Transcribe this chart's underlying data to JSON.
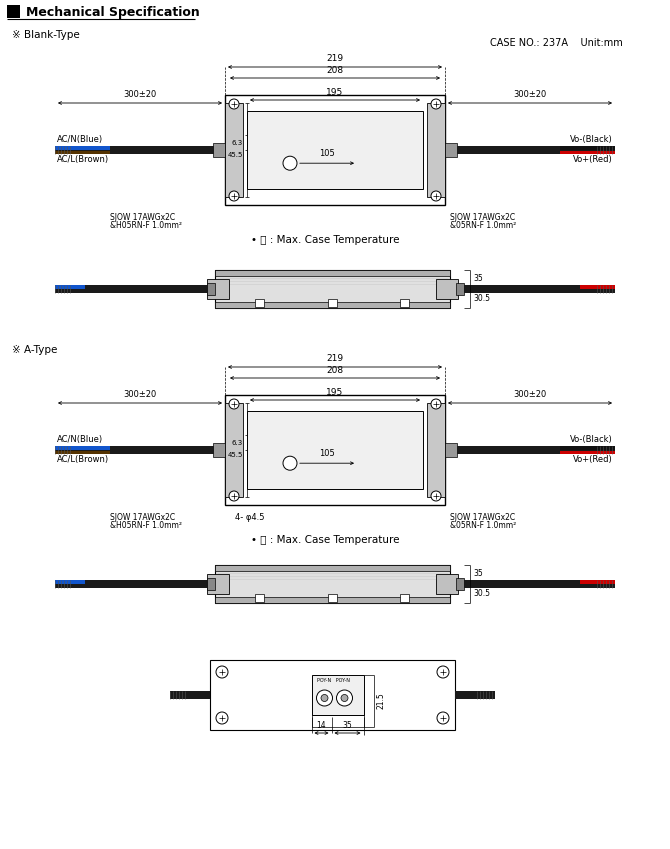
{
  "title": "Mechanical Specification",
  "bg_color": "#ffffff",
  "line_color": "#000000",
  "case_no": "CASE NO.: 237A    Unit:mm",
  "blank_type_label": "※ Blank-Type",
  "a_type_label": "※ A-Type",
  "dim_219": "219",
  "dim_208": "208",
  "dim_195": "195",
  "dim_105": "105",
  "dim_300_20": "300±20",
  "dim_63": "6.3",
  "dim_455": "45.5",
  "ac_label1": "AC/N(Blue)",
  "ac_label2": "AC/L(Brown)",
  "sjow_left": "SJOW 17AWGx2C",
  "h05rn_left": "&H05RN-F 1.0mm²",
  "sjow_right": "SJOW 17AWGx2C",
  "h05rn_right": "&05RN-F 1.0mm²",
  "vo_black": "Vo-(Black)",
  "vo_red": "Vo+(Red)",
  "tc_note": "• Ⓣ : Max. Case Temperature",
  "a_type_extra": "4- φ4.5",
  "dim_215": "21.5",
  "dim_14": "14",
  "dim_35": "35",
  "dim_35s": "35",
  "dim_305": "30.5"
}
